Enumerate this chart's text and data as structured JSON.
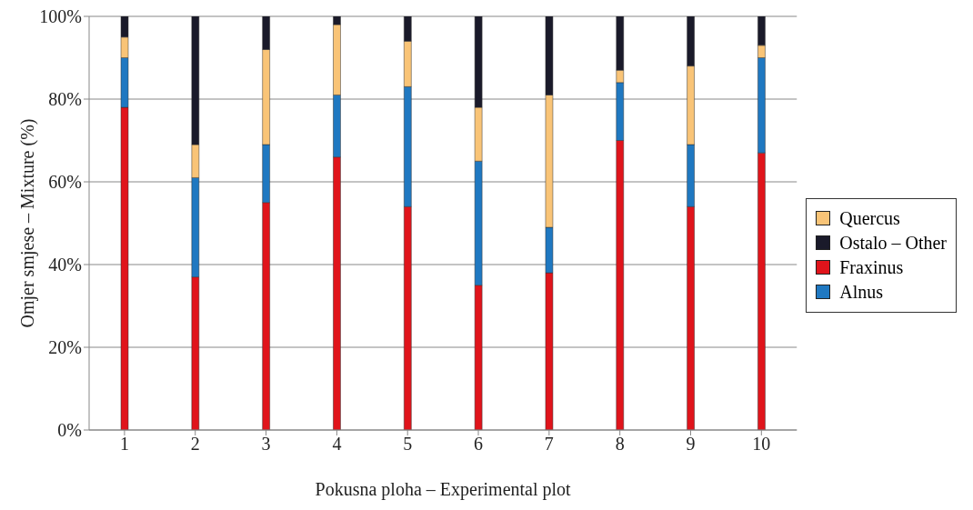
{
  "chart_data": {
    "type": "bar",
    "stacked": true,
    "categories": [
      "1",
      "2",
      "3",
      "4",
      "5",
      "6",
      "7",
      "8",
      "9",
      "10"
    ],
    "series": [
      {
        "name": "Fraxinus",
        "color": "#e0141b",
        "values": [
          78,
          37,
          55,
          66,
          54,
          35,
          38,
          70,
          54,
          67
        ]
      },
      {
        "name": "Alnus",
        "color": "#1f78c1",
        "values": [
          12,
          24,
          14,
          15,
          29,
          30,
          11,
          14,
          15,
          23
        ]
      },
      {
        "name": "Quercus",
        "color": "#f9c477",
        "values": [
          5,
          8,
          23,
          17,
          11,
          13,
          32,
          3,
          19,
          3
        ]
      },
      {
        "name": "Ostalo – Other",
        "color": "#1a1a2a",
        "values": [
          5,
          31,
          8,
          2,
          6,
          22,
          19,
          13,
          12,
          7
        ]
      }
    ],
    "ylim": [
      0,
      100
    ],
    "yticks": [
      {
        "value": 0,
        "label": "0%"
      },
      {
        "value": 20,
        "label": "20%"
      },
      {
        "value": 40,
        "label": "40%"
      },
      {
        "value": 60,
        "label": "60%"
      },
      {
        "value": 80,
        "label": "80%"
      },
      {
        "value": 100,
        "label": "100%"
      }
    ],
    "xlabel": "Pokusna ploha – Experimental plot",
    "ylabel": "Omjer smjese – Mixture (%)",
    "grid": "y",
    "legend": "right"
  }
}
